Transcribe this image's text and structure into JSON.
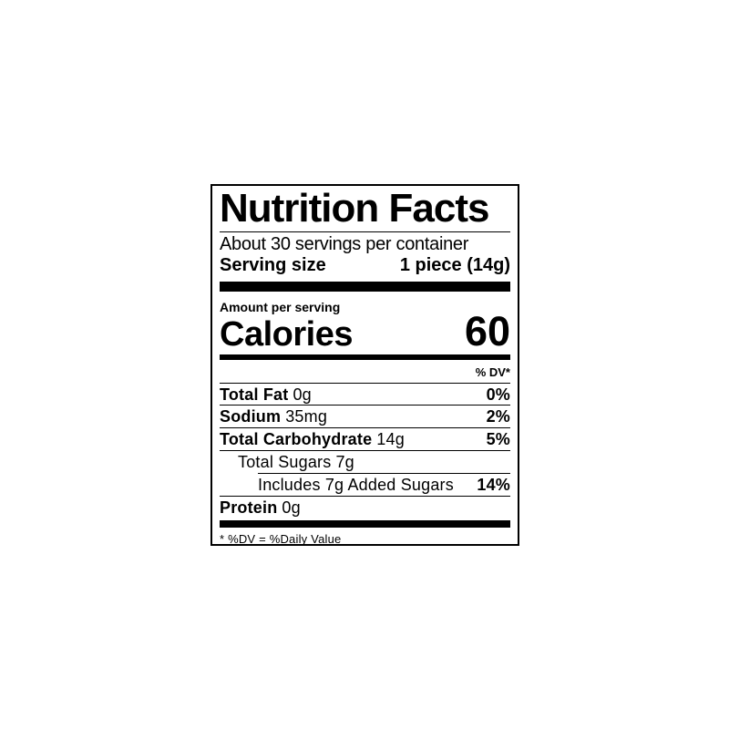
{
  "label": {
    "title": "Nutrition Facts",
    "servings_per_container": "About 30 servings per container",
    "serving_size": {
      "name": "Serving size",
      "value": "1 piece (14g)"
    },
    "amount_per_serving": "Amount per serving",
    "calories": {
      "name": "Calories",
      "value": "60"
    },
    "dv_header": "% DV*",
    "rows": [
      {
        "name": "Total Fat",
        "amount": "0g",
        "dv": "0%"
      },
      {
        "name": "Sodium",
        "amount": "35mg",
        "dv": "2%"
      },
      {
        "name": "Total Carbohydrate",
        "amount": "14g",
        "dv": "5%"
      },
      {
        "name": "Total Sugars",
        "amount": "7g",
        "dv": ""
      },
      {
        "name": "Includes 7g Added Sugars",
        "amount": "",
        "dv": "14%"
      },
      {
        "name": "Protein",
        "amount": "0g",
        "dv": ""
      }
    ],
    "footnote": "* %DV = %Daily Value"
  },
  "colors": {
    "text": "#000000",
    "background": "#ffffff",
    "divider": "#000000"
  }
}
